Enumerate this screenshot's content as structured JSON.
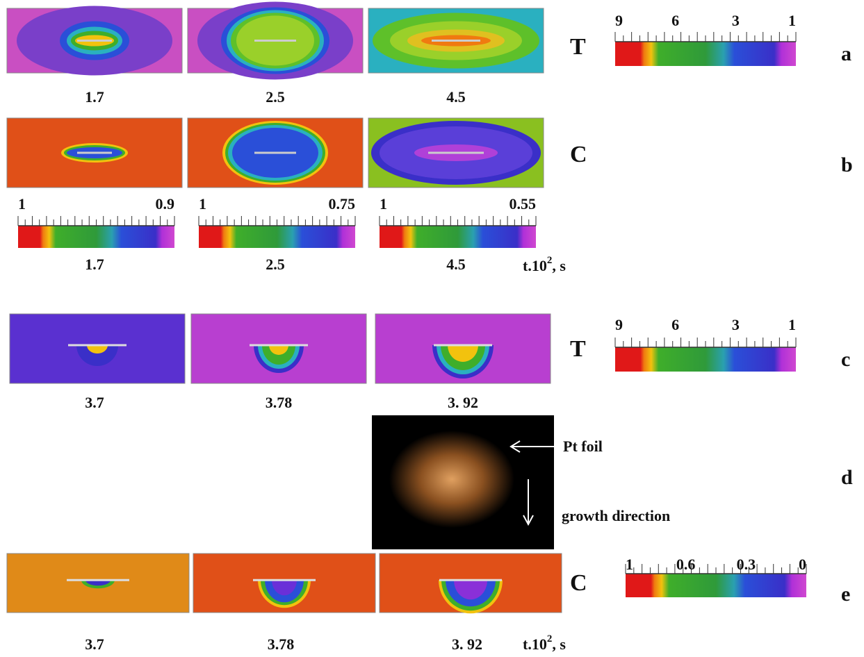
{
  "panel_a": {
    "symbol": "T",
    "times": [
      "1.7",
      "2.5",
      "4.5"
    ],
    "scale": [
      "9",
      "6",
      "3",
      "1"
    ],
    "label": "a"
  },
  "panel_b": {
    "symbol": "C",
    "scales": [
      [
        "1",
        "0.9"
      ],
      [
        "1",
        "0.75"
      ],
      [
        "1",
        "0.55"
      ]
    ],
    "times": [
      "1.7",
      "2.5",
      "4.5"
    ],
    "unit": {
      "base": "t.10",
      "exp": "2",
      "tail": ", s"
    },
    "label": "b"
  },
  "panel_c": {
    "symbol": "T",
    "times": [
      "3.7",
      "3.78",
      "3. 92"
    ],
    "scale": [
      "9",
      "6",
      "3",
      "1"
    ],
    "label": "c"
  },
  "panel_d": {
    "annotations": [
      "Pt foil",
      "growth direction"
    ],
    "label": "d"
  },
  "panel_e": {
    "symbol": "C",
    "times": [
      "3.7",
      "3.78",
      "3. 92"
    ],
    "scale": [
      "1",
      "0.6",
      "0.3",
      "0"
    ],
    "unit": {
      "base": "t.10",
      "exp": "2",
      "tail": ", s"
    },
    "label": "e"
  }
}
